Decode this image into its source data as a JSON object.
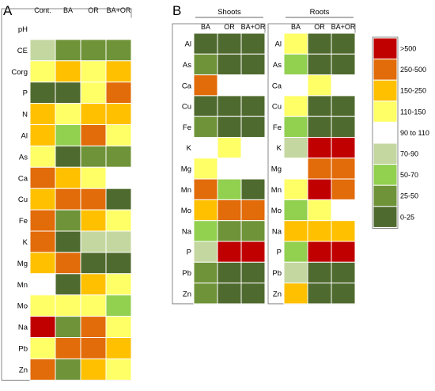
{
  "panel_labels": [
    "A",
    "B"
  ],
  "palette": {
    "c0": "#4f6a2e",
    "c1": "#6f9338",
    "c2": "#92d050",
    "c3": "#c4d7a0",
    "c4": "#ffffff",
    "c5": "#ffff66",
    "c6": "#ffc000",
    "c7": "#e26b0a",
    "c8": "#c00000"
  },
  "legend": {
    "labels": [
      ">500",
      "250-500",
      "150-250",
      "110-150",
      "90 to 110",
      "70-90",
      "50-70",
      "25-50",
      "0-25"
    ],
    "codes": [
      8,
      7,
      6,
      5,
      4,
      3,
      2,
      1,
      0
    ]
  },
  "chart_data": [
    {
      "type": "heatmap",
      "panel": "A",
      "title": "",
      "columns": [
        "Cont.",
        "BA",
        "OR",
        "BA+OR"
      ],
      "rows": [
        "pH",
        "CE",
        "Corg",
        "P",
        "N",
        "Al",
        "As",
        "Ca",
        "Cu",
        "Fe",
        "K",
        "Mg",
        "Mn",
        "Mo",
        "Na",
        "Pb",
        "Zn"
      ],
      "values": [
        [
          4,
          4,
          4,
          4
        ],
        [
          3,
          1,
          1,
          1
        ],
        [
          5,
          6,
          5,
          6
        ],
        [
          0,
          0,
          5,
          7
        ],
        [
          6,
          5,
          6,
          6
        ],
        [
          6,
          2,
          7,
          5
        ],
        [
          5,
          0,
          1,
          1
        ],
        [
          7,
          6,
          5,
          4
        ],
        [
          6,
          7,
          7,
          0
        ],
        [
          7,
          1,
          6,
          5
        ],
        [
          7,
          0,
          3,
          3
        ],
        [
          6,
          7,
          0,
          0
        ],
        [
          4,
          0,
          6,
          5
        ],
        [
          5,
          5,
          5,
          2
        ],
        [
          8,
          1,
          7,
          5
        ],
        [
          5,
          7,
          7,
          6
        ],
        [
          7,
          1,
          6,
          5
        ]
      ]
    },
    {
      "type": "heatmap",
      "panel": "B",
      "title": "Shoots",
      "columns": [
        "BA",
        "OR",
        "BA+OR"
      ],
      "rows": [
        "Al",
        "As",
        "Ca",
        "Cu",
        "Fe",
        "K",
        "Mg",
        "Mn",
        "Mo",
        "Na",
        "P",
        "Pb",
        "Zn"
      ],
      "values": [
        [
          0,
          0,
          0
        ],
        [
          1,
          0,
          0
        ],
        [
          7,
          4,
          4
        ],
        [
          0,
          0,
          0
        ],
        [
          1,
          0,
          0
        ],
        [
          4,
          5,
          4
        ],
        [
          5,
          4,
          4
        ],
        [
          7,
          2,
          0
        ],
        [
          6,
          7,
          7
        ],
        [
          2,
          1,
          1
        ],
        [
          3,
          8,
          8
        ],
        [
          1,
          0,
          0
        ],
        [
          1,
          0,
          0
        ]
      ]
    },
    {
      "type": "heatmap",
      "panel": "B",
      "title": "Roots",
      "columns": [
        "BA",
        "OR",
        "BA+OR"
      ],
      "rows": [
        "Al",
        "As",
        "Ca",
        "Cu",
        "Fe",
        "K",
        "Mg",
        "Mn",
        "Mo",
        "Na",
        "P",
        "Pb",
        "Zn"
      ],
      "values": [
        [
          5,
          0,
          0
        ],
        [
          2,
          0,
          0
        ],
        [
          4,
          5,
          4
        ],
        [
          5,
          0,
          0
        ],
        [
          2,
          0,
          0
        ],
        [
          3,
          8,
          8
        ],
        [
          4,
          7,
          7
        ],
        [
          5,
          8,
          7
        ],
        [
          2,
          5,
          4
        ],
        [
          6,
          6,
          6
        ],
        [
          2,
          8,
          8
        ],
        [
          3,
          0,
          0
        ],
        [
          6,
          0,
          0
        ]
      ]
    }
  ]
}
